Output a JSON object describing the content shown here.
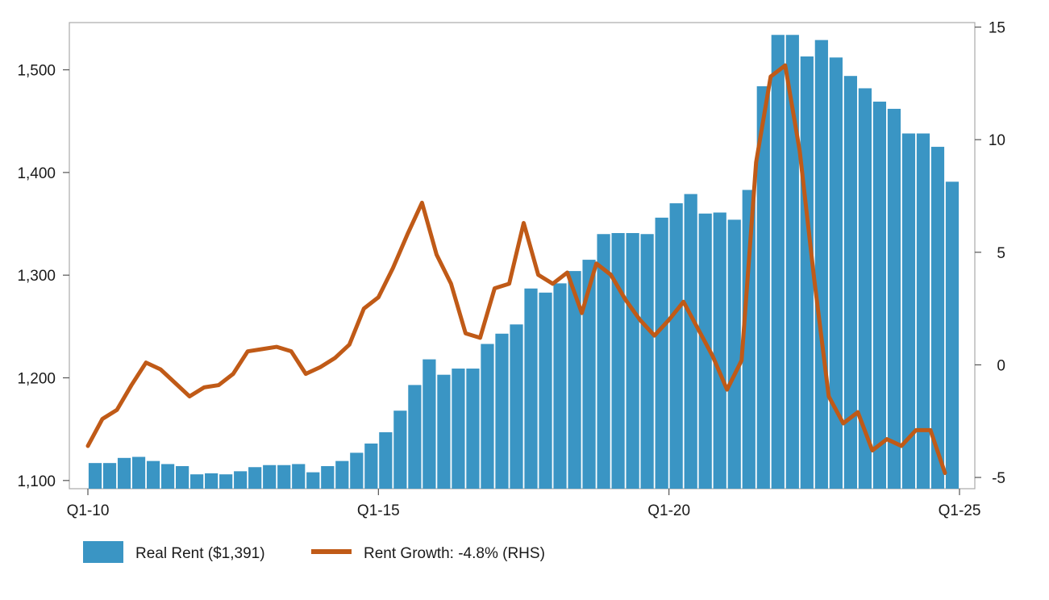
{
  "chart_data": {
    "type": "bar",
    "title": "",
    "xlabel": "",
    "ylabel": "",
    "ylim": [
      1092,
      1546
    ],
    "ylim_right": [
      -5.5,
      15.2
    ],
    "y_ticks": [
      "1,100",
      "1,200",
      "1,300",
      "1,400",
      "1,500"
    ],
    "y_tick_values": [
      1100,
      1200,
      1300,
      1400,
      1500
    ],
    "y2_ticks": [
      "-5",
      "0",
      "5",
      "10",
      "15"
    ],
    "y2_tick_values": [
      -5,
      0,
      5,
      10,
      15
    ],
    "x_ticks": [
      "Q1-10",
      "Q1-15",
      "Q1-20",
      "Q1-25"
    ],
    "x_tick_quarter_index": [
      0,
      20,
      40,
      60
    ],
    "grid": false,
    "legend_position": "bottom-left",
    "series": [
      {
        "name": "Real Rent ($1,391)",
        "type": "bar",
        "axis": "left",
        "color": "#3a95c4",
        "values": [
          1117,
          1117,
          1122,
          1123,
          1119,
          1116,
          1114,
          1106,
          1107,
          1106,
          1109,
          1113,
          1115,
          1115,
          1116,
          1108,
          1114,
          1119,
          1127,
          1136,
          1147,
          1168,
          1193,
          1218,
          1203,
          1209,
          1209,
          1233,
          1243,
          1252,
          1287,
          1283,
          1292,
          1304,
          1315,
          1340,
          1341,
          1341,
          1340,
          1356,
          1370,
          1379,
          1360,
          1361,
          1354,
          1383,
          1484,
          1534,
          1534,
          1513,
          1529,
          1512,
          1494,
          1482,
          1469,
          1462,
          1438,
          1438,
          1425,
          1391
        ]
      },
      {
        "name": "Rent Growth: -4.8% (RHS)",
        "type": "line",
        "axis": "right",
        "color": "#c05a17",
        "values": [
          -3.6,
          -2.4,
          -2.0,
          -0.9,
          0.1,
          -0.2,
          -0.8,
          -1.4,
          -1.0,
          -0.9,
          -0.4,
          0.6,
          0.7,
          0.8,
          0.6,
          -0.4,
          -0.1,
          0.3,
          0.9,
          2.5,
          3.0,
          4.3,
          5.8,
          7.2,
          4.9,
          3.6,
          1.4,
          1.2,
          3.4,
          3.6,
          6.3,
          4.0,
          3.6,
          4.1,
          2.3,
          4.5,
          4.0,
          2.9,
          2.0,
          1.3,
          2.0,
          2.8,
          1.6,
          0.4,
          -1.1,
          0.2,
          9.0,
          12.8,
          13.3,
          9.5,
          3.8,
          -1.4,
          -2.6,
          -2.1,
          -3.8,
          -3.3,
          -3.6,
          -2.9,
          -2.9,
          -4.8
        ]
      }
    ]
  }
}
